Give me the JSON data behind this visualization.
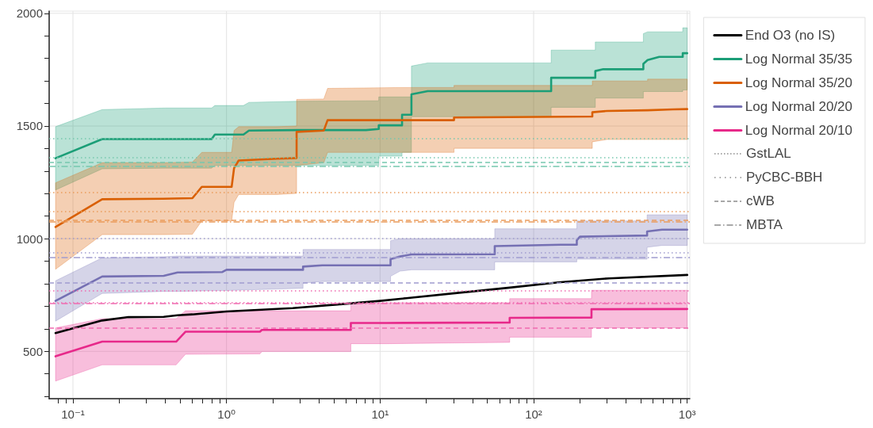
{
  "chart_data": {
    "type": "line",
    "marker": "none",
    "grid": true,
    "legend": "top right",
    "xlim": [
      0.07,
      1040
    ],
    "ylim": [
      290,
      2010
    ],
    "log": "x",
    "xticks": [
      {
        "value": 0.08,
        "label": null
      },
      {
        "value": 0.09,
        "label": null
      },
      {
        "value": 0.1,
        "label": "10⁻¹"
      },
      {
        "value": 0.2,
        "label": null
      },
      {
        "value": 0.3,
        "label": null
      },
      {
        "value": 0.4,
        "label": null
      },
      {
        "value": 0.5,
        "label": null
      },
      {
        "value": 0.6,
        "label": null
      },
      {
        "value": 0.7,
        "label": null
      },
      {
        "value": 0.8,
        "label": null
      },
      {
        "value": 0.9,
        "label": null
      },
      {
        "value": 1,
        "label": "10⁰"
      },
      {
        "value": 2,
        "label": null
      },
      {
        "value": 3,
        "label": null
      },
      {
        "value": 4,
        "label": null
      },
      {
        "value": 5,
        "label": null
      },
      {
        "value": 6,
        "label": null
      },
      {
        "value": 7,
        "label": null
      },
      {
        "value": 8,
        "label": null
      },
      {
        "value": 9,
        "label": null
      },
      {
        "value": 10,
        "label": "10¹"
      },
      {
        "value": 20,
        "label": null
      },
      {
        "value": 30,
        "label": null
      },
      {
        "value": 40,
        "label": null
      },
      {
        "value": 50,
        "label": null
      },
      {
        "value": 60,
        "label": null
      },
      {
        "value": 70,
        "label": null
      },
      {
        "value": 80,
        "label": null
      },
      {
        "value": 90,
        "label": null
      },
      {
        "value": 100,
        "label": "10²"
      },
      {
        "value": 200,
        "label": null
      },
      {
        "value": 300,
        "label": null
      },
      {
        "value": 400,
        "label": null
      },
      {
        "value": 500,
        "label": null
      },
      {
        "value": 600,
        "label": null
      },
      {
        "value": 700,
        "label": null
      },
      {
        "value": 800,
        "label": null
      },
      {
        "value": 900,
        "label": null
      },
      {
        "value": 1000,
        "label": "10³"
      }
    ],
    "yticks": [
      {
        "value": 300,
        "label": null
      },
      {
        "value": 400,
        "label": null
      },
      500,
      {
        "value": 600,
        "label": null
      },
      {
        "value": 700,
        "label": null
      },
      {
        "value": 800,
        "label": null
      },
      {
        "value": 900,
        "label": null
      },
      1000,
      {
        "value": 1100,
        "label": null
      },
      {
        "value": 1200,
        "label": null
      },
      {
        "value": 1300,
        "label": null
      },
      {
        "value": 1400,
        "label": null
      },
      1500,
      {
        "value": 1600,
        "label": null
      },
      {
        "value": 1700,
        "label": null
      },
      {
        "value": 1800,
        "label": null
      },
      {
        "value": 1900,
        "label": null
      },
      2000
    ],
    "series": [
      {
        "name": "End O3 (no IS)",
        "color": "#000000",
        "x": [
          0.077,
          0.155,
          0.23,
          0.39,
          0.48,
          0.6,
          1,
          2.7,
          5.7,
          10,
          14.8,
          31.8,
          68,
          145,
          310,
          1000
        ],
        "values": [
          581,
          637,
          652,
          653,
          660,
          664,
          677,
          692,
          710,
          724,
          736,
          759,
          782,
          806,
          824,
          839
        ]
      },
      {
        "name": "Log Normal 35/35",
        "color": "#1b9e77",
        "x": [
          0.077,
          0.155,
          0.4,
          0.8,
          0.84,
          1.29,
          1.4,
          2.9,
          8.1,
          9.8,
          9.8,
          13.9,
          13.9,
          16,
          16,
          20.4,
          130,
          130,
          252,
          252,
          284,
          518,
          518,
          552,
          657,
          935,
          935,
          1000
        ],
        "values": [
          1357,
          1442,
          1442,
          1442,
          1462,
          1462,
          1480,
          1482,
          1482,
          1487,
          1503,
          1503,
          1550,
          1550,
          1641,
          1655,
          1655,
          1714,
          1714,
          1744,
          1752,
          1752,
          1776,
          1793,
          1807,
          1807,
          1823,
          1823
        ],
        "lower": [
          1216,
          1310,
          1313,
          1313,
          1325,
          1325,
          1325,
          1325,
          1325,
          1325,
          1366,
          1366,
          1383,
          1383,
          1541,
          1541,
          1541,
          1583,
          1583,
          1624,
          1624,
          1624,
          1653,
          1653,
          1653,
          1653,
          1660,
          1660
        ],
        "upper": [
          1497,
          1573,
          1580,
          1580,
          1591,
          1591,
          1605,
          1610,
          1612,
          1612,
          1629,
          1629,
          1629,
          1629,
          1766,
          1780,
          1780,
          1837,
          1837,
          1873,
          1873,
          1873,
          1910,
          1918,
          1918,
          1918,
          1936,
          1936
        ]
      },
      {
        "name": "Log Normal 35/20",
        "color": "#d95f02",
        "x": [
          0.077,
          0.155,
          0.386,
          0.6,
          0.69,
          1.08,
          1.12,
          1.2,
          2.12,
          2.86,
          2.86,
          4.3,
          4.55,
          13.9,
          30.3,
          30.3,
          241,
          241,
          300,
          552,
          552,
          808,
          1000
        ],
        "values": [
          1052,
          1175,
          1177,
          1180,
          1230,
          1230,
          1313,
          1347,
          1355,
          1358,
          1474,
          1480,
          1526,
          1526,
          1526,
          1538,
          1542,
          1561,
          1567,
          1570,
          1570,
          1574,
          1575
        ],
        "lower": [
          864,
          1018,
          1018,
          1020,
          1079,
          1079,
          1161,
          1196,
          1196,
          1201,
          1325,
          1337,
          1383,
          1383,
          1383,
          1401,
          1401,
          1430,
          1440,
          1440,
          1440,
          1440,
          1440
        ],
        "upper": [
          1248,
          1337,
          1337,
          1340,
          1383,
          1383,
          1480,
          1497,
          1497,
          1500,
          1618,
          1620,
          1667,
          1671,
          1671,
          1680,
          1680,
          1700,
          1700,
          1700,
          1708,
          1708,
          1708
        ]
      },
      {
        "name": "Log Normal 20/20",
        "color": "#7570b3",
        "x": [
          0.077,
          0.155,
          0.39,
          0.48,
          0.94,
          1,
          3.15,
          3.15,
          4.2,
          11.7,
          11.7,
          13.5,
          16,
          55.8,
          55.8,
          150,
          191,
          191,
          200,
          548,
          548,
          685,
          1000
        ],
        "values": [
          724,
          832,
          835,
          850,
          852,
          862,
          862,
          876,
          882,
          882,
          909,
          921,
          930,
          931,
          967,
          973,
          973,
          993,
          1009,
          1014,
          1032,
          1040,
          1040
        ],
        "lower": [
          634,
          757,
          766,
          766,
          770,
          770,
          780,
          803,
          810,
          810,
          833,
          856,
          862,
          862,
          897,
          897,
          897,
          909,
          909,
          909,
          962,
          970,
          970
        ],
        "upper": [
          813,
          915,
          920,
          923,
          923,
          923,
          923,
          952,
          952,
          952,
          991,
          1000,
          1000,
          1000,
          1044,
          1044,
          1044,
          1079,
          1079,
          1079,
          1106,
          1106,
          1106
        ]
      },
      {
        "name": "Log Normal 20/10",
        "color": "#e7298a",
        "x": [
          0.077,
          0.155,
          0.47,
          0.54,
          1.65,
          1.7,
          6.45,
          6.45,
          11,
          69.8,
          69.8,
          238,
          238,
          1000
        ],
        "values": [
          478,
          543,
          543,
          587,
          587,
          595,
          595,
          626,
          626,
          628,
          649,
          650,
          687,
          688
        ],
        "lower": [
          368,
          440,
          440,
          487,
          489,
          499,
          499,
          534,
          534,
          540,
          563,
          563,
          604,
          604
        ],
        "upper": [
          604,
          645,
          645,
          680,
          680,
          680,
          680,
          710,
          716,
          716,
          734,
          734,
          771,
          771
        ]
      }
    ],
    "annotations": [
      "GstLAL",
      "PyCBC-BBH",
      "cWB",
      "MBTA"
    ],
    "ref_lines": [
      {
        "axis": "y",
        "value": 1360,
        "color": "#76c8ae",
        "line_style": "dotted"
      },
      {
        "axis": "y",
        "value": 1122,
        "color": "#ea9c5c",
        "line_style": "dotted"
      },
      {
        "axis": "y",
        "value": 938,
        "color": "#a09cd0",
        "line_style": "dotted"
      },
      {
        "axis": "y",
        "value": 718,
        "color": "#f06bb0",
        "line_style": "dotted"
      },
      {
        "axis": "y",
        "value": 1446,
        "color": "#76c8ae",
        "line_style": "dotted"
      },
      {
        "axis": "y",
        "value": 1205,
        "color": "#ea9c5c",
        "line_style": "dotted"
      },
      {
        "axis": "y",
        "value": 1000,
        "color": "#a09cd0",
        "line_style": "dotted"
      },
      {
        "axis": "y",
        "value": 771,
        "color": "#f06bb0",
        "line_style": "dotted"
      },
      {
        "axis": "y",
        "value": 1338,
        "color": "#76c8ae",
        "line_style": "dashed"
      },
      {
        "axis": "y",
        "value": 1082,
        "color": "#ea9c5c",
        "line_style": "dashed"
      },
      {
        "axis": "y",
        "value": 803,
        "color": "#a09cd0",
        "line_style": "dashed"
      },
      {
        "axis": "y",
        "value": 604,
        "color": "#f06bb0",
        "line_style": "dashed"
      },
      {
        "axis": "y",
        "value": 1321,
        "color": "#76c8ae",
        "line_style": "dashdot"
      },
      {
        "axis": "y",
        "value": 1075,
        "color": "#ea9c5c",
        "line_style": "dashdot"
      },
      {
        "axis": "y",
        "value": 918,
        "color": "#a09cd0",
        "line_style": "dashdot"
      },
      {
        "axis": "y",
        "value": 713,
        "color": "#f06bb0",
        "line_style": "dashdot"
      }
    ]
  }
}
